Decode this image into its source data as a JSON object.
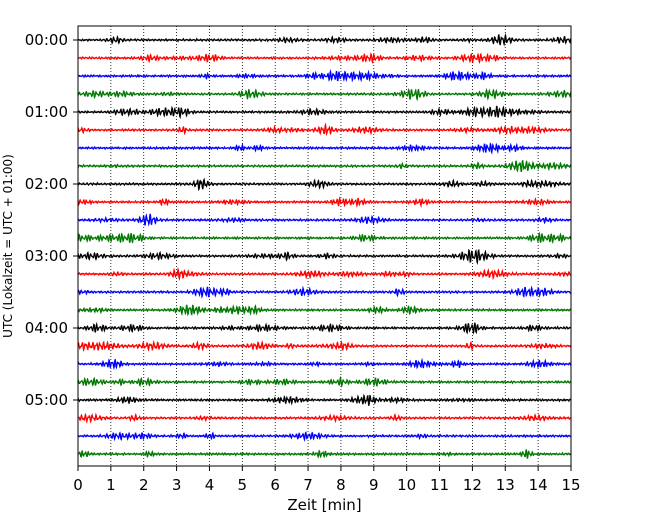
{
  "chart_data": {
    "type": "line",
    "title": "",
    "xlabel": "Zeit  [min]",
    "ylabel": "UTC (Lokalzeit = UTC + 01:00)",
    "xlim": [
      0,
      15
    ],
    "x_ticks": [
      0,
      1,
      2,
      3,
      4,
      5,
      6,
      7,
      8,
      9,
      10,
      11,
      12,
      13,
      14,
      15
    ],
    "y_tick_labels": [
      "00:00",
      "01:00",
      "02:00",
      "03:00",
      "04:00",
      "05:00"
    ],
    "traces_per_hour": 4,
    "trace_count": 24,
    "trace_minutes": 15,
    "trace_colors": [
      "#000000",
      "#ff0000",
      "#0000ff",
      "#007700"
    ],
    "grid": {
      "vertical_dotted": true,
      "horizontal": false
    },
    "legend": "none"
  }
}
